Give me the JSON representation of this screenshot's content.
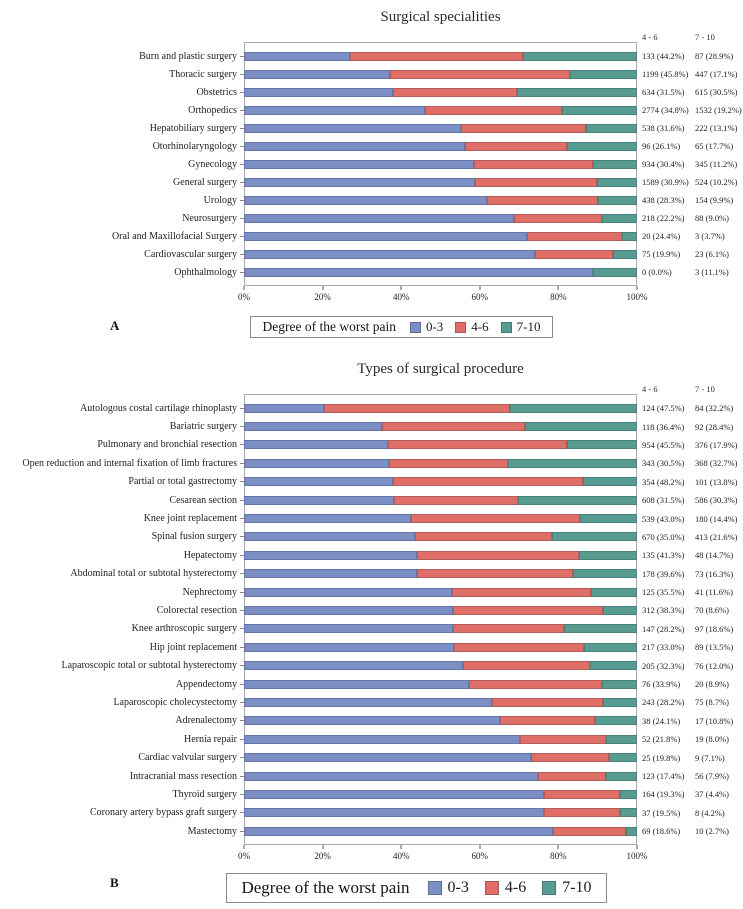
{
  "colors": {
    "low": "#7c8fc5",
    "mid": "#df6f66",
    "high": "#579b91",
    "plot_border": "#a9a9a9",
    "text": "#1c1c1c"
  },
  "col_headers": [
    "4 - 6",
    "7 - 10"
  ],
  "axis": {
    "ticks": [
      "0%",
      "20%",
      "40%",
      "60%",
      "80%",
      "100%"
    ]
  },
  "legend": {
    "title": "Degree of the worst pain",
    "items": [
      {
        "label": "0-3",
        "key": "low"
      },
      {
        "label": "4-6",
        "key": "mid"
      },
      {
        "label": "7-10",
        "key": "high"
      }
    ]
  },
  "chart_data": [
    {
      "type": "bar",
      "orientation": "horizontal",
      "stacked": true,
      "panel": "A",
      "title": "Surgical specialities",
      "series_names": [
        "0-3",
        "4-6",
        "7-10"
      ],
      "xlabel": "",
      "xlim": [
        0,
        100
      ],
      "x_ticks": [
        "0%",
        "20%",
        "40%",
        "60%",
        "80%",
        "100%"
      ],
      "legend_position": "bottom",
      "grid": false,
      "rows": [
        {
          "category": "Burn and plastic surgery",
          "pct": [
            26.9,
            44.2,
            28.9
          ],
          "mid_label": "133 (44.2%)",
          "high_label": "87 (28.9%)"
        },
        {
          "category": "Thoracic surgery",
          "pct": [
            37.1,
            45.8,
            17.1
          ],
          "mid_label": "1199 (45.8%)",
          "high_label": "447 (17.1%)"
        },
        {
          "category": "Obstetrics",
          "pct": [
            38.0,
            31.5,
            30.5
          ],
          "mid_label": "634 (31.5%)",
          "high_label": "615 (30.5%)"
        },
        {
          "category": "Orthopedics",
          "pct": [
            46.0,
            34.8,
            19.2
          ],
          "mid_label": "2774 (34.8%)",
          "high_label": "1532 (19.2%)"
        },
        {
          "category": "Hepatobiliary surgery",
          "pct": [
            55.3,
            31.6,
            13.1
          ],
          "mid_label": "538 (31.6%)",
          "high_label": "222 (13.1%)"
        },
        {
          "category": "Otorhinolaryngology",
          "pct": [
            56.2,
            26.1,
            17.7
          ],
          "mid_label": "96 (26.1%)",
          "high_label": "65 (17.7%)"
        },
        {
          "category": "Gynecology",
          "pct": [
            58.4,
            30.4,
            11.2
          ],
          "mid_label": "934 (30.4%)",
          "high_label": "345 (11.2%)"
        },
        {
          "category": "General surgery",
          "pct": [
            58.9,
            30.9,
            10.2
          ],
          "mid_label": "1589 (30.9%)",
          "high_label": "524 (10.2%)"
        },
        {
          "category": "Urology",
          "pct": [
            61.8,
            28.3,
            9.9
          ],
          "mid_label": "438 (28.3%)",
          "high_label": "154 (9.9%)"
        },
        {
          "category": "Neurosurgery",
          "pct": [
            68.8,
            22.2,
            9.0
          ],
          "mid_label": "218 (22.2%)",
          "high_label": "88 (9.0%)"
        },
        {
          "category": "Oral and Maxillofacial Surgery",
          "pct": [
            71.9,
            24.4,
            3.7
          ],
          "mid_label": "20 (24.4%)",
          "high_label": "3 (3.7%)"
        },
        {
          "category": "Cardiovascular surgery",
          "pct": [
            74.0,
            19.9,
            6.1
          ],
          "mid_label": "75 (19.9%)",
          "high_label": "23 (6.1%)"
        },
        {
          "category": "Ophthalmology",
          "pct": [
            88.9,
            0.0,
            11.1
          ],
          "mid_label": "0 (0.0%)",
          "high_label": "3 (11.1%)"
        }
      ]
    },
    {
      "type": "bar",
      "orientation": "horizontal",
      "stacked": true,
      "panel": "B",
      "title": "Types of surgical procedure",
      "series_names": [
        "0-3",
        "4-6",
        "7-10"
      ],
      "xlabel": "",
      "xlim": [
        0,
        100
      ],
      "x_ticks": [
        "0%",
        "20%",
        "40%",
        "60%",
        "80%",
        "100%"
      ],
      "legend_position": "bottom",
      "grid": false,
      "rows": [
        {
          "category": "Autologous costal cartilage rhinoplasty",
          "pct": [
            20.3,
            47.5,
            32.2
          ],
          "mid_label": "124 (47.5%)",
          "high_label": "84 (32.2%)"
        },
        {
          "category": "Bariatric surgery",
          "pct": [
            35.2,
            36.4,
            28.4
          ],
          "mid_label": "118 (36.4%)",
          "high_label": "92 (28.4%)"
        },
        {
          "category": "Pulmonary and bronchial resection",
          "pct": [
            36.6,
            45.5,
            17.9
          ],
          "mid_label": "954 (45.5%)",
          "high_label": "376 (17.9%)"
        },
        {
          "category": "Open reduction and internal fixation of limb fractures",
          "pct": [
            36.8,
            30.5,
            32.7
          ],
          "mid_label": "343 (30.5%)",
          "high_label": "368 (32.7%)"
        },
        {
          "category": "Partial or total gastrectomy",
          "pct": [
            38.0,
            48.2,
            13.8
          ],
          "mid_label": "354 (48.2%)",
          "high_label": "101 (13.8%)"
        },
        {
          "category": "Cesarean section",
          "pct": [
            38.2,
            31.5,
            30.3
          ],
          "mid_label": "608 (31.5%)",
          "high_label": "586 (30.3%)"
        },
        {
          "category": "Knee joint replacement",
          "pct": [
            42.6,
            43.0,
            14.4
          ],
          "mid_label": "539 (43.0%)",
          "high_label": "180 (14.4%)"
        },
        {
          "category": "Spinal fusion surgery",
          "pct": [
            43.4,
            35.0,
            21.6
          ],
          "mid_label": "670 (35.0%)",
          "high_label": "413 (21.6%)"
        },
        {
          "category": "Hepatectomy",
          "pct": [
            44.0,
            41.3,
            14.7
          ],
          "mid_label": "135 (41.3%)",
          "high_label": "48 (14.7%)"
        },
        {
          "category": "Abdominal total or subtotal hysterectomy",
          "pct": [
            44.1,
            39.6,
            16.3
          ],
          "mid_label": "178 (39.6%)",
          "high_label": "73 (16.3%)"
        },
        {
          "category": "Nephrectomy",
          "pct": [
            52.9,
            35.5,
            11.6
          ],
          "mid_label": "125 (35.5%)",
          "high_label": "41 (11.6%)"
        },
        {
          "category": "Colorectal resection",
          "pct": [
            53.1,
            38.3,
            8.6
          ],
          "mid_label": "312 (38.3%)",
          "high_label": "70 (8.6%)"
        },
        {
          "category": "Knee arthroscopic surgery",
          "pct": [
            53.2,
            28.2,
            18.6
          ],
          "mid_label": "147 (28.2%)",
          "high_label": "97 (18.6%)"
        },
        {
          "category": "Hip joint replacement",
          "pct": [
            53.5,
            33.0,
            13.5
          ],
          "mid_label": "217 (33.0%)",
          "high_label": "89 (13.5%)"
        },
        {
          "category": "Laparoscopic total or subtotal hysterectomy",
          "pct": [
            55.7,
            32.3,
            12.0
          ],
          "mid_label": "205 (32.3%)",
          "high_label": "76 (12.0%)"
        },
        {
          "category": "Appendectomy",
          "pct": [
            57.2,
            33.9,
            8.9
          ],
          "mid_label": "76 (33.9%)",
          "high_label": "20 (8.9%)"
        },
        {
          "category": "Laparoscopic cholecystectomy",
          "pct": [
            63.1,
            28.2,
            8.7
          ],
          "mid_label": "243 (28.2%)",
          "high_label": "75 (8.7%)"
        },
        {
          "category": "Adrenalectomy",
          "pct": [
            65.1,
            24.1,
            10.8
          ],
          "mid_label": "38 (24.1%)",
          "high_label": "17 (10.8%)"
        },
        {
          "category": "Hernia repair",
          "pct": [
            70.2,
            21.8,
            8.0
          ],
          "mid_label": "52 (21.8%)",
          "high_label": "19 (8.0%)"
        },
        {
          "category": "Cardiac valvular surgery",
          "pct": [
            73.1,
            19.8,
            7.1
          ],
          "mid_label": "25 (19.8%)",
          "high_label": "9 (7.1%)"
        },
        {
          "category": "Intracranial mass resection",
          "pct": [
            74.7,
            17.4,
            7.9
          ],
          "mid_label": "123 (17.4%)",
          "high_label": "56 (7.9%)"
        },
        {
          "category": "Thyroid surgery",
          "pct": [
            76.3,
            19.3,
            4.4
          ],
          "mid_label": "164 (19.3%)",
          "high_label": "37 (4.4%)"
        },
        {
          "category": "Coronary artery bypass graft surgery",
          "pct": [
            76.3,
            19.5,
            4.2
          ],
          "mid_label": "37 (19.5%)",
          "high_label": "8 (4.2%)"
        },
        {
          "category": "Mastectomy",
          "pct": [
            78.7,
            18.6,
            2.7
          ],
          "mid_label": "69 (18.6%)",
          "high_label": "10 (2.7%)"
        }
      ]
    }
  ]
}
